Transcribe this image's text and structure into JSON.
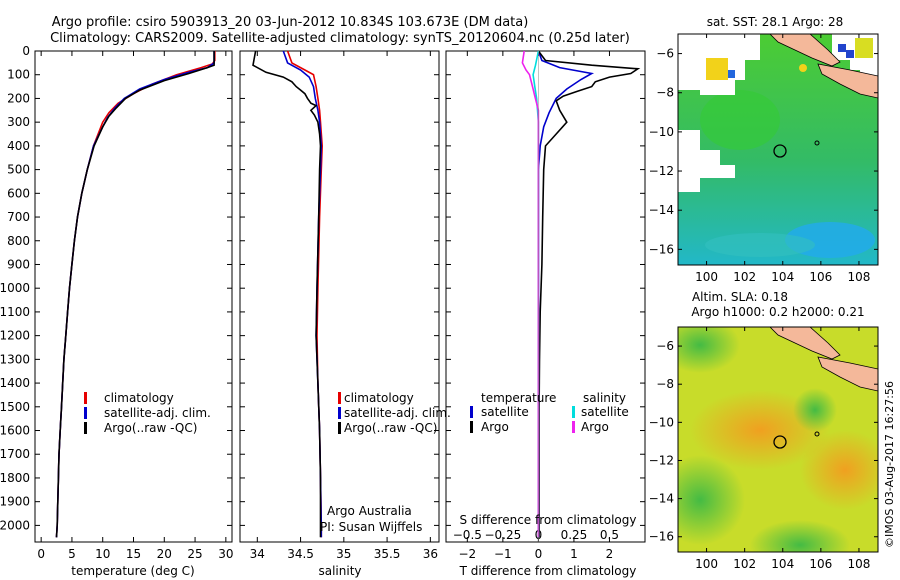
{
  "title_line1": "Argo profile: csiro 5903913_20 03-Jun-2012 10.834S 103.673E (DM data)",
  "title_line2": "Climatology: CARS2009. Satellite-adjusted climatology: synTS_20120604.nc (0.25d later)",
  "credit": "©IMOS 03-Aug-2017 16:27:56",
  "colors": {
    "climatology": "#e60000",
    "satellite": "#0000cc",
    "argo": "#000000",
    "sal_satellite": "#00dddd",
    "sal_argo": "#ee22ee",
    "land": "#f4b89a"
  },
  "chart_data": [
    {
      "type": "line",
      "name": "temperature-panel",
      "xlabel": "temperature (deg C)",
      "ylabel": "",
      "xlim": [
        -1,
        31
      ],
      "ylim": [
        2070,
        0
      ],
      "xticks": [
        0,
        5,
        10,
        15,
        20,
        25,
        30
      ],
      "yticks": [
        0,
        100,
        200,
        300,
        400,
        500,
        600,
        700,
        800,
        900,
        1000,
        1100,
        1200,
        1300,
        1400,
        1500,
        1600,
        1700,
        1800,
        1900,
        2000
      ],
      "legend": [
        "climatology",
        "satellite-adj. clim.",
        "Argo(..raw -QC)"
      ],
      "series": [
        {
          "name": "climatology",
          "color_key": "climatology",
          "points": [
            [
              28.2,
              0
            ],
            [
              28.2,
              40
            ],
            [
              27.8,
              55
            ],
            [
              26,
              70
            ],
            [
              22,
              100
            ],
            [
              18,
              140
            ],
            [
              15,
              180
            ],
            [
              12.5,
              220
            ],
            [
              11,
              260
            ],
            [
              10,
              300
            ],
            [
              8.5,
              400
            ],
            [
              7.5,
              500
            ],
            [
              6.6,
              600
            ],
            [
              5.9,
              700
            ],
            [
              5.4,
              800
            ],
            [
              5,
              900
            ],
            [
              4.6,
              1000
            ],
            [
              4.3,
              1100
            ],
            [
              4,
              1200
            ],
            [
              3.7,
              1300
            ],
            [
              3.5,
              1400
            ],
            [
              3.3,
              1500
            ],
            [
              3.1,
              1600
            ],
            [
              2.9,
              1700
            ],
            [
              2.8,
              1800
            ],
            [
              2.7,
              1900
            ],
            [
              2.6,
              2000
            ],
            [
              2.5,
              2050
            ]
          ]
        },
        {
          "name": "satellite-adj. clim.",
          "color_key": "satellite",
          "points": [
            [
              28.1,
              0
            ],
            [
              28.1,
              50
            ],
            [
              27,
              70
            ],
            [
              24,
              90
            ],
            [
              20,
              120
            ],
            [
              16,
              160
            ],
            [
              13.5,
              200
            ],
            [
              12,
              240
            ],
            [
              10.8,
              280
            ],
            [
              10,
              320
            ],
            [
              8.5,
              400
            ],
            [
              7.5,
              500
            ],
            [
              6.6,
              600
            ],
            [
              5.9,
              700
            ],
            [
              5.4,
              800
            ],
            [
              5,
              900
            ],
            [
              4.6,
              1000
            ],
            [
              4.3,
              1100
            ],
            [
              4,
              1200
            ],
            [
              3.7,
              1300
            ],
            [
              3.5,
              1400
            ],
            [
              3.3,
              1500
            ],
            [
              3.1,
              1600
            ],
            [
              2.9,
              1700
            ],
            [
              2.8,
              1800
            ],
            [
              2.7,
              1900
            ],
            [
              2.6,
              2000
            ],
            [
              2.5,
              2050
            ]
          ]
        },
        {
          "name": "Argo",
          "color_key": "argo",
          "points": [
            [
              28.1,
              0
            ],
            [
              28.1,
              60
            ],
            [
              27,
              70
            ],
            [
              24,
              95
            ],
            [
              20,
              125
            ],
            [
              16,
              165
            ],
            [
              13.7,
              200
            ],
            [
              12.2,
              240
            ],
            [
              11,
              275
            ],
            [
              10,
              320
            ],
            [
              8.6,
              400
            ],
            [
              7.5,
              500
            ],
            [
              6.6,
              600
            ],
            [
              5.9,
              700
            ],
            [
              5.4,
              800
            ],
            [
              5,
              900
            ],
            [
              4.6,
              1000
            ],
            [
              4.3,
              1100
            ],
            [
              4,
              1200
            ],
            [
              3.7,
              1300
            ],
            [
              3.5,
              1400
            ],
            [
              3.3,
              1500
            ],
            [
              3.1,
              1600
            ],
            [
              2.9,
              1700
            ],
            [
              2.8,
              1800
            ],
            [
              2.7,
              1900
            ],
            [
              2.6,
              2000
            ],
            [
              2.5,
              2050
            ]
          ]
        }
      ]
    },
    {
      "type": "line",
      "name": "salinity-panel",
      "xlabel": "salinity",
      "xlim": [
        33.8,
        36.1
      ],
      "ylim": [
        2070,
        0
      ],
      "xticks": [
        34,
        34.5,
        35,
        35.5,
        36
      ],
      "legend": [
        "climatology",
        "satellite-adj. clim.",
        "Argo(..raw -QC)"
      ],
      "annotation": [
        "Argo Australia",
        "PI: Susan Wijffels"
      ],
      "series": [
        {
          "name": "climatology",
          "color_key": "climatology",
          "points": [
            [
              34.35,
              0
            ],
            [
              34.4,
              50
            ],
            [
              34.55,
              80
            ],
            [
              34.65,
              100
            ],
            [
              34.68,
              150
            ],
            [
              34.7,
              200
            ],
            [
              34.72,
              250
            ],
            [
              34.73,
              300
            ],
            [
              34.75,
              400
            ],
            [
              34.74,
              500
            ],
            [
              34.72,
              700
            ],
            [
              34.7,
              1000
            ],
            [
              34.69,
              1200
            ],
            [
              34.7,
              1400
            ],
            [
              34.72,
              1600
            ],
            [
              34.73,
              1800
            ],
            [
              34.74,
              2000
            ],
            [
              34.74,
              2050
            ]
          ]
        },
        {
          "name": "satellite-adj. clim.",
          "color_key": "satellite",
          "points": [
            [
              34.3,
              0
            ],
            [
              34.35,
              50
            ],
            [
              34.5,
              80
            ],
            [
              34.6,
              110
            ],
            [
              34.65,
              150
            ],
            [
              34.67,
              200
            ],
            [
              34.7,
              250
            ],
            [
              34.72,
              300
            ],
            [
              34.74,
              400
            ],
            [
              34.73,
              500
            ],
            [
              34.71,
              700
            ],
            [
              34.69,
              1000
            ],
            [
              34.68,
              1200
            ],
            [
              34.7,
              1400
            ],
            [
              34.72,
              1600
            ],
            [
              34.73,
              1800
            ],
            [
              34.74,
              2000
            ],
            [
              34.74,
              2050
            ]
          ]
        },
        {
          "name": "Argo",
          "color_key": "argo",
          "points": [
            [
              33.98,
              0
            ],
            [
              33.95,
              60
            ],
            [
              34.1,
              90
            ],
            [
              34.3,
              110
            ],
            [
              34.4,
              130
            ],
            [
              34.45,
              150
            ],
            [
              34.5,
              165
            ],
            [
              34.55,
              180
            ],
            [
              34.58,
              200
            ],
            [
              34.6,
              210
            ],
            [
              34.62,
              220
            ],
            [
              34.68,
              230
            ],
            [
              34.62,
              250
            ],
            [
              34.66,
              270
            ],
            [
              34.7,
              300
            ],
            [
              34.72,
              350
            ],
            [
              34.73,
              400
            ],
            [
              34.72,
              500
            ],
            [
              34.71,
              700
            ],
            [
              34.69,
              1000
            ],
            [
              34.68,
              1200
            ],
            [
              34.7,
              1400
            ],
            [
              34.72,
              1600
            ],
            [
              34.73,
              1800
            ],
            [
              34.73,
              2000
            ],
            [
              34.73,
              2050
            ]
          ]
        }
      ]
    },
    {
      "type": "line",
      "name": "difference-panel",
      "xlabel": "T difference from climatology",
      "xlabel_top": "S difference from climatology",
      "xlim": [
        -2.6,
        3.0
      ],
      "ylim": [
        2070,
        0
      ],
      "xticks": [
        -2,
        -1,
        0,
        1,
        2
      ],
      "xticks_top": [
        -0.5,
        -0.25,
        0,
        0.25,
        0.5
      ],
      "legend_temperature_title": "temperature",
      "legend_salinity_title": "salinity",
      "legend": [
        "satellite",
        "Argo",
        "satellite",
        "Argo"
      ],
      "series": [
        {
          "name": "T satellite",
          "color_key": "satellite",
          "points": [
            [
              0,
              0
            ],
            [
              0.1,
              40
            ],
            [
              0.6,
              70
            ],
            [
              1.5,
              95
            ],
            [
              1.2,
              120
            ],
            [
              0.8,
              160
            ],
            [
              0.5,
              200
            ],
            [
              0.3,
              260
            ],
            [
              0.15,
              320
            ],
            [
              0.05,
              400
            ],
            [
              0,
              500
            ],
            [
              0,
              2050
            ]
          ]
        },
        {
          "name": "T Argo",
          "color_key": "argo",
          "points": [
            [
              0,
              0
            ],
            [
              0.2,
              40
            ],
            [
              1.5,
              60
            ],
            [
              2.8,
              75
            ],
            [
              2.6,
              95
            ],
            [
              2,
              110
            ],
            [
              1.6,
              130
            ],
            [
              1.5,
              150
            ],
            [
              1.1,
              170
            ],
            [
              0.7,
              190
            ],
            [
              0.5,
              210
            ],
            [
              0.6,
              250
            ],
            [
              0.8,
              300
            ],
            [
              0.5,
              350
            ],
            [
              0.2,
              400
            ],
            [
              0.15,
              500
            ],
            [
              0.12,
              700
            ],
            [
              0.1,
              900
            ],
            [
              0.05,
              1100
            ],
            [
              0.03,
              1300
            ],
            [
              0.02,
              1500
            ],
            [
              0.02,
              1700
            ],
            [
              0.02,
              1900
            ],
            [
              0.02,
              2050
            ]
          ]
        },
        {
          "name": "S satellite",
          "color_key": "sal_satellite",
          "points": [
            [
              0,
              0
            ],
            [
              -0.08,
              60
            ],
            [
              -0.15,
              100
            ],
            [
              -0.1,
              150
            ],
            [
              -0.05,
              200
            ],
            [
              -0.02,
              260
            ],
            [
              0,
              300
            ],
            [
              0,
              2050
            ]
          ]
        },
        {
          "name": "S Argo",
          "color_key": "sal_argo",
          "points": [
            [
              -0.4,
              0
            ],
            [
              -0.45,
              50
            ],
            [
              -0.35,
              80
            ],
            [
              -0.25,
              100
            ],
            [
              -0.2,
              130
            ],
            [
              -0.15,
              160
            ],
            [
              -0.1,
              190
            ],
            [
              -0.05,
              220
            ],
            [
              0,
              250
            ],
            [
              0,
              2050
            ]
          ]
        }
      ]
    },
    {
      "type": "heatmap",
      "name": "sst-map",
      "title": "sat. SST: 28.1 Argo: 28",
      "xlim": [
        98.5,
        109
      ],
      "ylim": [
        -16.8,
        -5
      ],
      "xticks": [
        100,
        102,
        104,
        106,
        108
      ],
      "yticks": [
        -6,
        -8,
        -10,
        -12,
        -14,
        -16
      ],
      "profile_location": [
        103.673,
        -10.834
      ]
    },
    {
      "type": "heatmap",
      "name": "sla-map",
      "title_line1": "Altim. SLA: 0.18",
      "title_line2": "Argo h1000: 0.2 h2000: 0.21",
      "xlim": [
        98.5,
        109
      ],
      "ylim": [
        -16.8,
        -5
      ],
      "xticks": [
        100,
        102,
        104,
        106,
        108
      ],
      "yticks": [
        -6,
        -8,
        -10,
        -12,
        -14,
        -16
      ],
      "profile_location": [
        103.673,
        -10.834
      ]
    }
  ]
}
